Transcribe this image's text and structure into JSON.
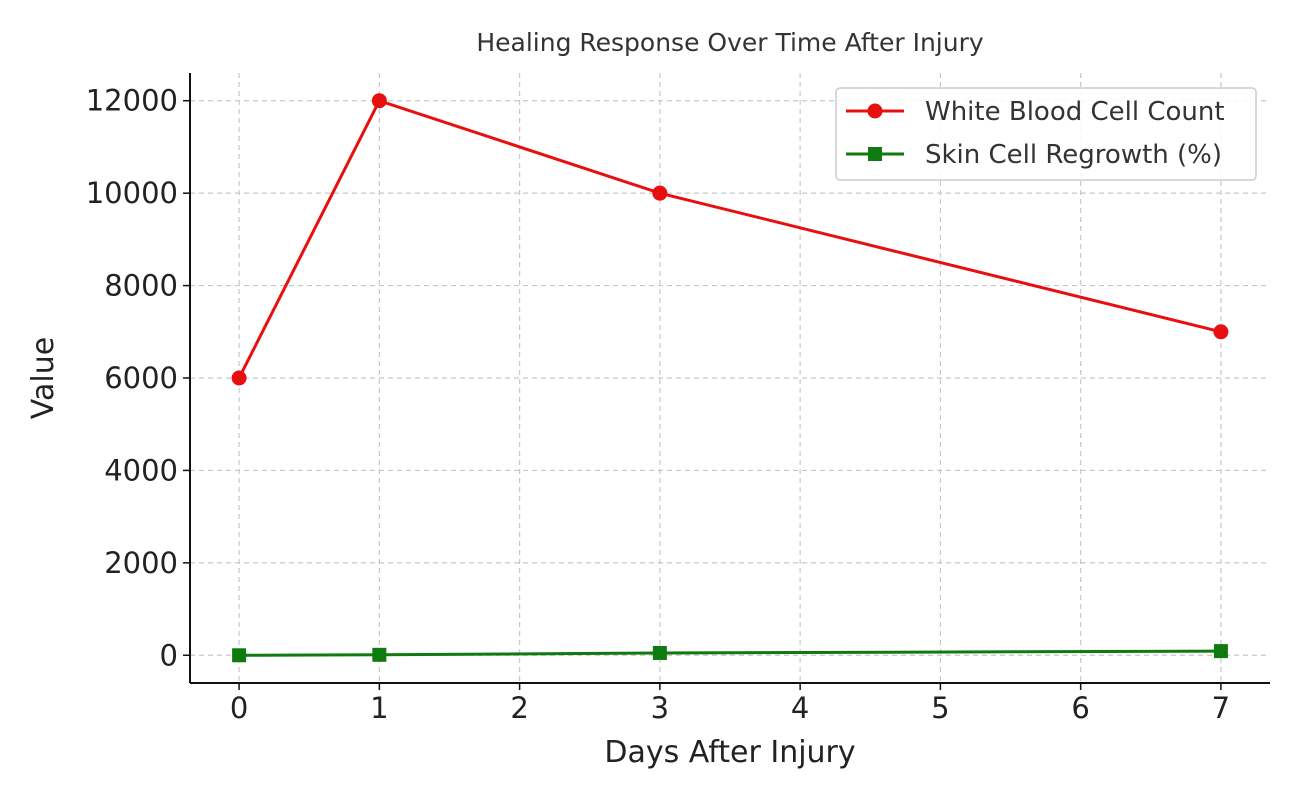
{
  "chart_data": {
    "type": "line",
    "title": "Healing Response Over Time After Injury",
    "xlabel": "Days After Injury",
    "ylabel": "Value",
    "xlim": [
      -0.35,
      7.35
    ],
    "ylim": [
      -600,
      12600
    ],
    "xticks": [
      "0",
      "1",
      "2",
      "3",
      "4",
      "5",
      "6",
      "7"
    ],
    "yticks": [
      "0",
      "2000",
      "4000",
      "6000",
      "8000",
      "10000",
      "12000"
    ],
    "grid": true,
    "legend_position": "top-right",
    "series": [
      {
        "name": "White Blood Cell Count",
        "color": "#e8100f",
        "marker": "circle",
        "x": [
          0,
          1,
          3,
          7
        ],
        "y": [
          6000,
          12000,
          10000,
          7000
        ]
      },
      {
        "name": "Skin Cell Regrowth (%)",
        "color": "#0f7a0f",
        "marker": "square",
        "x": [
          0,
          1,
          3,
          7
        ],
        "y": [
          0,
          10,
          50,
          90
        ]
      }
    ]
  }
}
